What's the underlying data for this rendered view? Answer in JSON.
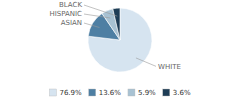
{
  "chart_data": {
    "type": "pie",
    "categories": [
      "WHITE",
      "ASIAN",
      "HISPANIC",
      "BLACK"
    ],
    "values": [
      76.9,
      13.6,
      5.9,
      3.6
    ],
    "value_labels": [
      "76.9%",
      "13.6%",
      "5.9%",
      "3.6%"
    ],
    "colors": [
      "#d6e4f0",
      "#4e7fa3",
      "#a8c2d3",
      "#1e3d56"
    ],
    "legend": "bottom"
  }
}
